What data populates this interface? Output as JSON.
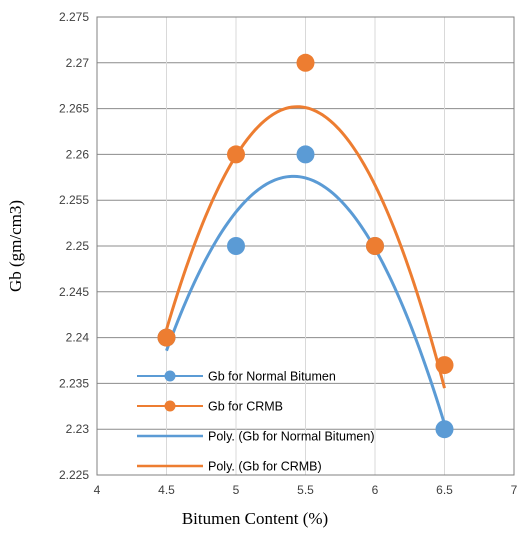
{
  "chart_data": {
    "type": "scatter",
    "title": "",
    "xlabel": "Bitumen Content (%)",
    "ylabel": "Gb (gm/cm3)",
    "xlim": [
      4,
      7
    ],
    "ylim": [
      2.225,
      2.275
    ],
    "x_ticks": [
      "4",
      "4.5",
      "5",
      "5.5",
      "6",
      "6.5",
      "7"
    ],
    "y_ticks": [
      "2.225",
      "2.23",
      "2.235",
      "2.24",
      "2.245",
      "2.25",
      "2.255",
      "2.26",
      "2.265",
      "2.27",
      "2.275"
    ],
    "grid": true,
    "legend_position": "bottom-left",
    "series": [
      {
        "name": "Gb for Normal Bitumen",
        "color": "#5B9BD5",
        "x": [
          4.5,
          5,
          5.5,
          6,
          6.5
        ],
        "y": [
          2.24,
          2.25,
          2.26,
          2.25,
          2.23
        ]
      },
      {
        "name": "Gb for CRMB",
        "color": "#ED7D31",
        "x": [
          4.5,
          5,
          5.5,
          6,
          6.5
        ],
        "y": [
          2.24,
          2.26,
          2.27,
          2.25,
          2.237
        ]
      }
    ],
    "trendlines": [
      {
        "name": "Poly. (Gb for Normal Bitumen)",
        "color": "#5B9BD5",
        "type": "polynomial",
        "order": 2,
        "source_series": 0
      },
      {
        "name": "Poly. (Gb for CRMB)",
        "color": "#ED7D31",
        "type": "polynomial",
        "order": 2,
        "source_series": 1
      }
    ]
  }
}
